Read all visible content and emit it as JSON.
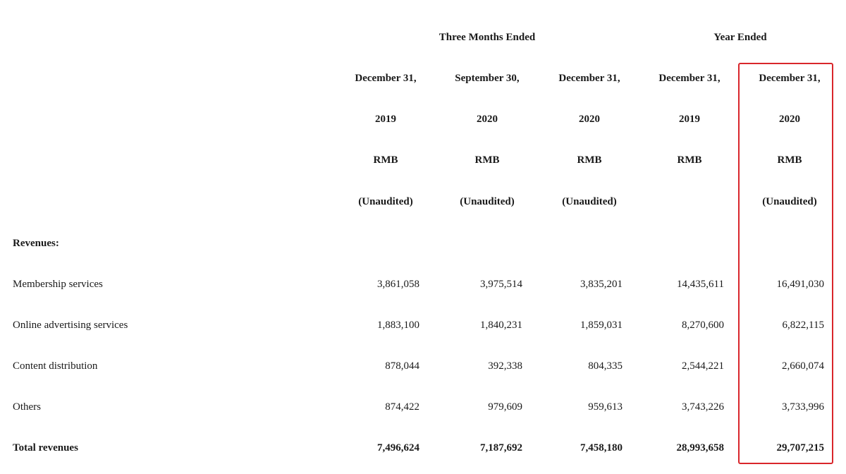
{
  "table": {
    "group_headers": {
      "three_months": "Three Months Ended",
      "year": "Year Ended"
    },
    "columns": [
      {
        "date": "December 31,",
        "year": "2019",
        "currency": "RMB",
        "note": "(Unaudited)"
      },
      {
        "date": "September 30,",
        "year": "2020",
        "currency": "RMB",
        "note": "(Unaudited)"
      },
      {
        "date": "December 31,",
        "year": "2020",
        "currency": "RMB",
        "note": "(Unaudited)"
      },
      {
        "date": "December 31,",
        "year": "2019",
        "currency": "RMB",
        "note": ""
      },
      {
        "date": "December 31,",
        "year": "2020",
        "currency": "RMB",
        "note": "(Unaudited)"
      }
    ],
    "section_label": "Revenues:",
    "rows": [
      {
        "label": "Membership services",
        "values": [
          "3,861,058",
          "3,975,514",
          "3,835,201",
          "14,435,611",
          "16,491,030"
        ]
      },
      {
        "label": "Online advertising services",
        "values": [
          "1,883,100",
          "1,840,231",
          "1,859,031",
          "8,270,600",
          "6,822,115"
        ]
      },
      {
        "label": "Content distribution",
        "values": [
          "878,044",
          "392,338",
          "804,335",
          "2,544,221",
          "2,660,074"
        ]
      },
      {
        "label": "Others",
        "values": [
          "874,422",
          "979,609",
          "959,613",
          "3,743,226",
          "3,733,996"
        ]
      }
    ],
    "total": {
      "label": "Total revenues",
      "values": [
        "7,496,624",
        "7,187,692",
        "7,458,180",
        "28,993,658",
        "29,707,215"
      ]
    }
  },
  "colors": {
    "highlight_border": "#d9262b",
    "text": "#1a1a1a",
    "background": "#ffffff"
  }
}
